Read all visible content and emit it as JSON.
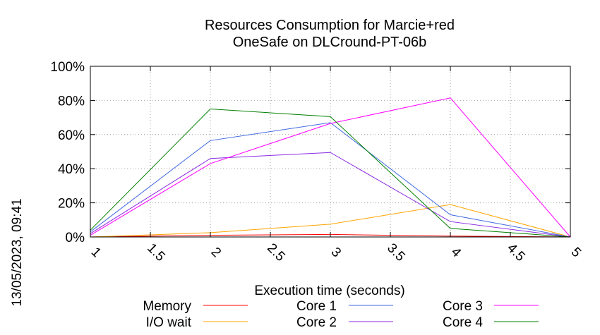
{
  "chart_data": {
    "type": "line",
    "title_line1": "Resources Consumption for Marcie+red",
    "title_line2": "OneSafe on DLCround-PT-06b",
    "xlabel": "Execution time (seconds)",
    "ylabel": "",
    "timestamp": "13/05/2023, 09:41",
    "xlim": [
      1,
      5
    ],
    "ylim": [
      0,
      100
    ],
    "x_ticks": [
      1,
      1.5,
      2,
      2.5,
      3,
      3.5,
      4,
      4.5,
      5
    ],
    "x_tick_labels": [
      "1",
      "1.5",
      "2",
      "2.5",
      "3",
      "3.5",
      "4",
      "4.5",
      "5"
    ],
    "y_ticks": [
      0,
      20,
      40,
      60,
      80,
      100
    ],
    "y_tick_labels": [
      "0%",
      "20%",
      "40%",
      "60%",
      "80%",
      "100%"
    ],
    "grid": true,
    "legend_position": "bottom",
    "x": [
      1,
      2,
      3,
      4,
      5
    ],
    "series": [
      {
        "name": "Memory",
        "color": "#ff0000",
        "values": [
          0,
          1,
          1.5,
          0.5,
          0
        ]
      },
      {
        "name": "I/O wait",
        "color": "#ffa500",
        "values": [
          0,
          2.5,
          7.5,
          19,
          0
        ]
      },
      {
        "name": "Core 1",
        "color": "#4169e1",
        "values": [
          3,
          56.5,
          67,
          13,
          0
        ]
      },
      {
        "name": "Core 2",
        "color": "#8a2be2",
        "values": [
          2,
          46,
          49.5,
          9,
          0
        ]
      },
      {
        "name": "Core 3",
        "color": "#ff00ff",
        "values": [
          1,
          43,
          66.5,
          81.5,
          0
        ]
      },
      {
        "name": "Core 4",
        "color": "#008000",
        "values": [
          4,
          75,
          70.5,
          5,
          0
        ]
      }
    ]
  }
}
